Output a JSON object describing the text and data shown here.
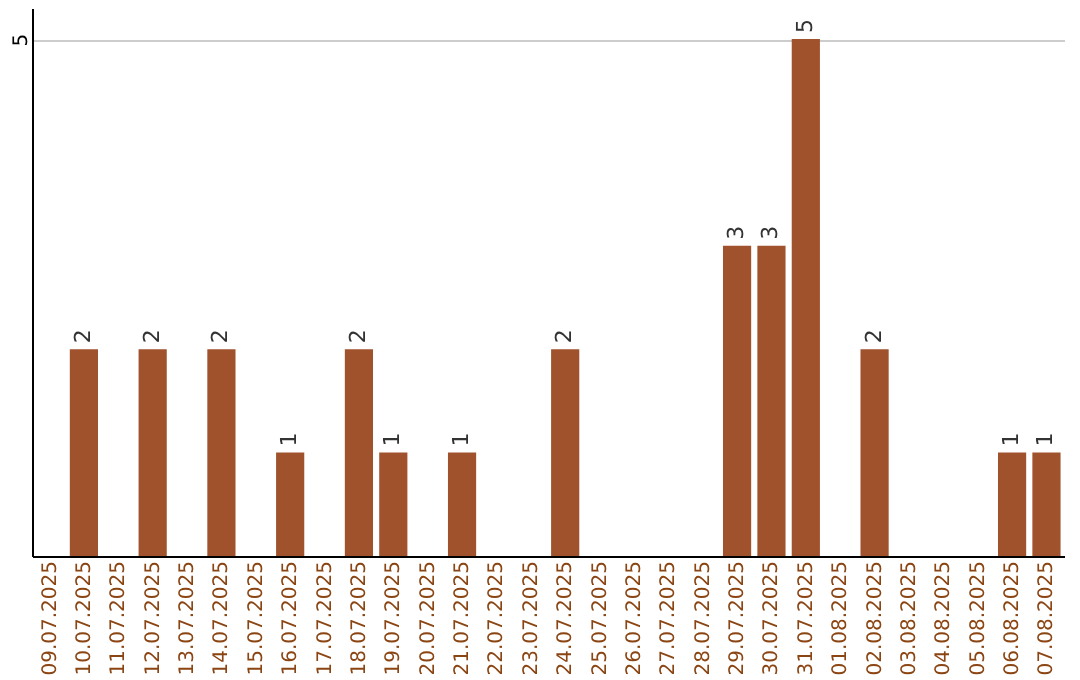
{
  "chart_data": {
    "type": "bar",
    "categories": [
      "09.07.2025",
      "10.07.2025",
      "11.07.2025",
      "12.07.2025",
      "13.07.2025",
      "14.07.2025",
      "15.07.2025",
      "16.07.2025",
      "17.07.2025",
      "18.07.2025",
      "19.07.2025",
      "20.07.2025",
      "21.07.2025",
      "22.07.2025",
      "23.07.2025",
      "24.07.2025",
      "25.07.2025",
      "26.07.2025",
      "27.07.2025",
      "28.07.2025",
      "29.07.2025",
      "30.07.2025",
      "31.07.2025",
      "01.08.2025",
      "02.08.2025",
      "03.08.2025",
      "04.08.2025",
      "05.08.2025",
      "06.08.2025",
      "07.08.2025"
    ],
    "values": [
      null,
      2,
      null,
      2,
      null,
      2,
      null,
      1,
      null,
      2,
      1,
      null,
      1,
      null,
      null,
      2,
      null,
      null,
      null,
      null,
      3,
      3,
      5,
      null,
      2,
      null,
      null,
      null,
      1,
      1
    ],
    "color": "#a0522d",
    "ylim": [
      0,
      5.3
    ],
    "yticks": [
      5
    ],
    "grid": "y",
    "data_labels": true
  }
}
